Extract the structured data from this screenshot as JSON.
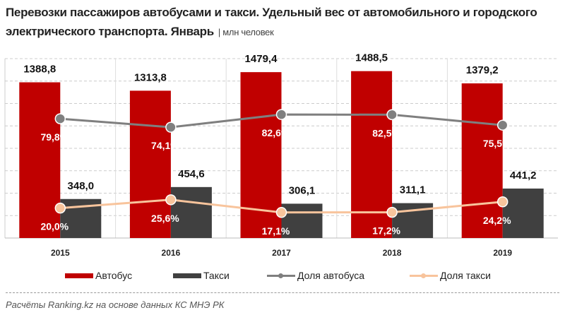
{
  "chart_data": {
    "type": "bar",
    "title": "Перевозки пассажиров автобусами и такси. Удельный вес от автомобильного и городского электрического транспорта. Январь",
    "unit": "| млн человек",
    "categories": [
      "2015",
      "2016",
      "2017",
      "2018",
      "2019"
    ],
    "series": [
      {
        "name": "Автобус",
        "type": "bar",
        "axis": "primary",
        "color": "#c00000",
        "values": [
          1388.8,
          1313.8,
          1479.4,
          1488.5,
          1379.2
        ],
        "labels": [
          "1388,8",
          "1313,8",
          "1479,4",
          "1488,5",
          "1379,2"
        ]
      },
      {
        "name": "Такси",
        "type": "bar",
        "axis": "primary",
        "color": "#404040",
        "values": [
          348.0,
          454.6,
          306.1,
          311.1,
          441.2
        ],
        "labels": [
          "348,0",
          "454,6",
          "306,1",
          "311,1",
          "441,2"
        ]
      },
      {
        "name": "Доля автобуса",
        "type": "line",
        "axis": "secondary",
        "color": "#7f7f7f",
        "values": [
          79.8,
          74.1,
          82.6,
          82.5,
          75.5
        ],
        "labels": [
          "79,8%",
          "74,1%",
          "82,6%",
          "82,5%",
          "75,5%"
        ]
      },
      {
        "name": "Доля такси",
        "type": "line",
        "axis": "secondary",
        "color": "#f8c49c",
        "values": [
          20.0,
          25.6,
          17.1,
          17.2,
          24.2
        ],
        "labels": [
          "20,0%",
          "25,6%",
          "17,1%",
          "17,2%",
          "24,2%"
        ]
      }
    ],
    "ylim": [
      0,
      1600
    ],
    "y2lim": [
      0,
      120
    ],
    "grid": true,
    "legend": "bottom"
  },
  "source": "Расчёты Ranking.kz на основе данных  КС МНЭ РК"
}
